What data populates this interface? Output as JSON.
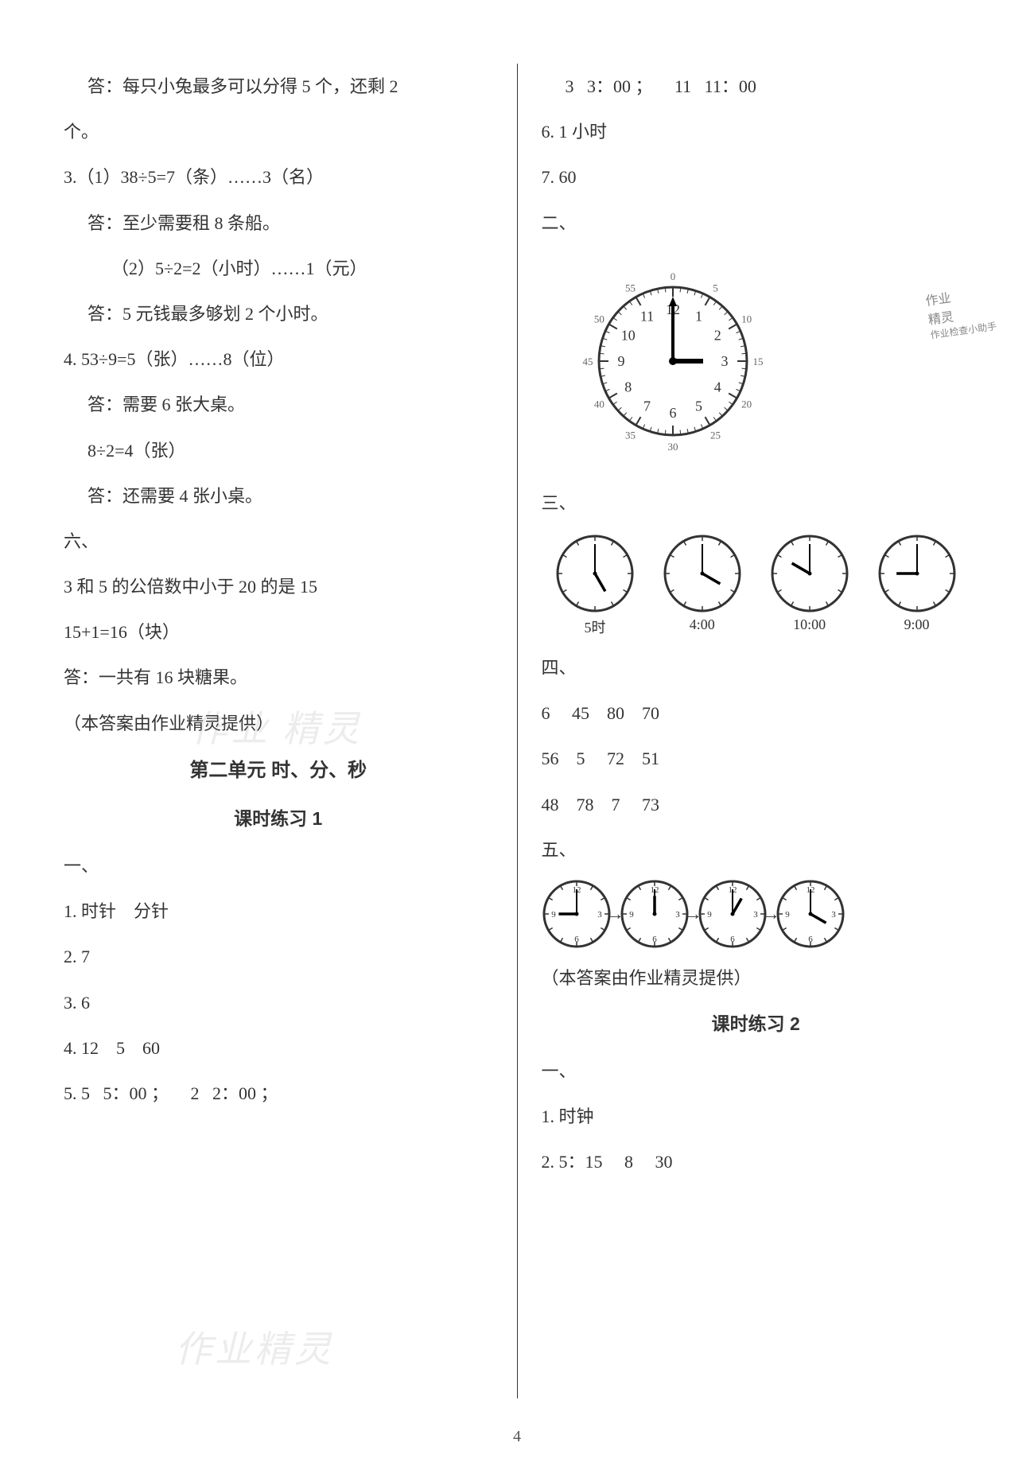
{
  "pageNumber": "4",
  "watermarks": {
    "text1": "作业 精灵",
    "text2": "作业精灵"
  },
  "left": {
    "l1": "答：每只小兔最多可以分得 5 个，还剩 2",
    "l2": "个。",
    "l3": "3.（1）38÷5=7（条）……3（名）",
    "l4": "答：至少需要租 8 条船。",
    "l5": "（2）5÷2=2（小时）……1（元）",
    "l6": "答：5 元钱最多够划 2 个小时。",
    "l7": "4. 53÷9=5（张）……8（位）",
    "l8": "答：需要 6 张大桌。",
    "l9": "8÷2=4（张）",
    "l10": "答：还需要 4 张小桌。",
    "l11": "六、",
    "l12": "3 和 5 的公倍数中小于 20 的是 15",
    "l13": "15+1=16（块）",
    "l14": "答：一共有 16 块糖果。",
    "l15": "（本答案由作业精灵提供）",
    "title1": "第二单元 时、分、秒",
    "title2": "课时练习 1",
    "l16": "一、",
    "l17": "1. 时针    分针",
    "l18": "2. 7",
    "l19": "3. 6",
    "l20": "4. 12    5    60",
    "l21": "5. 5   5：00 ；     2   2：00 ；"
  },
  "right": {
    "r1": "3   3：00 ；     11   11：00",
    "r2": "6. 1 小时",
    "r3": "7. 60",
    "r4": "二、",
    "bigClock": {
      "size": 230,
      "hourHand": 3,
      "minuteHand": 0,
      "numbers": [
        "12",
        "1",
        "2",
        "3",
        "4",
        "5",
        "6",
        "7",
        "8",
        "9",
        "10",
        "11"
      ],
      "outerNumbers": [
        "0",
        "5",
        "10",
        "15",
        "20",
        "25",
        "30",
        "35",
        "40",
        "45",
        "50",
        "55"
      ],
      "outerStroke": "#666666",
      "innerStroke": "#333333",
      "faceFill": "#ffffff",
      "handColor": "#000000"
    },
    "stamp": {
      "line1": "作业",
      "line2": "精灵",
      "line3": "作业检查小助手"
    },
    "r5": "三、",
    "smallClocks": {
      "size": 100,
      "items": [
        {
          "hour": 5,
          "minute": 0,
          "label": "5时"
        },
        {
          "hour": 4,
          "minute": 0,
          "label": "4:00"
        },
        {
          "hour": 10,
          "minute": 0,
          "label": "10:00"
        },
        {
          "hour": 9,
          "minute": 0,
          "label": "9:00"
        }
      ],
      "stroke": "#333333",
      "fill": "#ffffff",
      "handColor": "#000000"
    },
    "r6": "四、",
    "r7": "6     45    80    70",
    "r8": "56    5     72    51",
    "r9": "48    78    7     73",
    "r10": "五、",
    "seqClocks": {
      "size": 88,
      "items": [
        {
          "hour": 9,
          "minute": 0
        },
        {
          "hour": 12,
          "minute": 0
        },
        {
          "hour": 1,
          "minute": 0
        },
        {
          "hour": 4,
          "minute": 0
        }
      ],
      "arrow": "→",
      "numbers": [
        "12",
        "3",
        "6",
        "9"
      ],
      "stroke": "#333333",
      "fill": "#ffffff",
      "handColor": "#000000"
    },
    "r11": "（本答案由作业精灵提供）",
    "title3": "课时练习 2",
    "r12": "一、",
    "r13": "1. 时钟",
    "r14": "2. 5：15     8     30"
  }
}
